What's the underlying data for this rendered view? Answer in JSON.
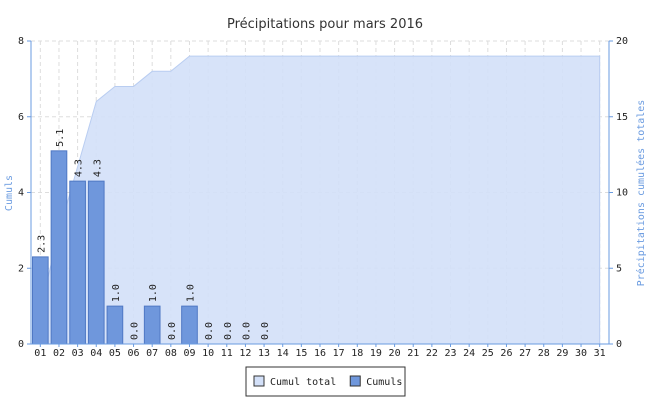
{
  "chart_data": {
    "type": "bar",
    "title": "Précipitations pour mars 2016",
    "y_label": "Cumuls",
    "y2_label": "Précipitations cumulées totales",
    "categories": [
      "01",
      "02",
      "03",
      "04",
      "05",
      "06",
      "07",
      "08",
      "09",
      "10",
      "11",
      "12",
      "13",
      "14",
      "15",
      "16",
      "17",
      "18",
      "19",
      "20",
      "21",
      "22",
      "23",
      "24",
      "25",
      "26",
      "27",
      "28",
      "29",
      "30",
      "31"
    ],
    "series": [
      {
        "name": "Cumul total",
        "type": "area",
        "axis": "y2",
        "color": "#d3e0f8",
        "values": [
          2.3,
          7.4,
          11.7,
          16.0,
          17.0,
          17.0,
          18.0,
          18.0,
          19.0,
          19.0,
          19.0,
          19.0,
          19.0,
          19.0,
          19.0,
          19.0,
          19.0,
          19.0,
          19.0,
          19.0,
          19.0,
          19.0,
          19.0,
          19.0,
          19.0,
          19.0,
          19.0,
          19.0,
          19.0,
          19.0,
          19.0
        ]
      },
      {
        "name": "Cumuls",
        "type": "bar",
        "color": "#6f97dc",
        "values": [
          2.3,
          5.1,
          4.3,
          4.3,
          1,
          0,
          1,
          0,
          1,
          0,
          0,
          0,
          0,
          null,
          null,
          null,
          null,
          null,
          null,
          null,
          null,
          null,
          null,
          null,
          null,
          null,
          null,
          null,
          null,
          null,
          null
        ],
        "value_labels": [
          "2.3",
          "5.1",
          "4.3",
          "4.3",
          "1.0",
          "0.0",
          "1.0",
          "0.0",
          "1.0",
          "0.0",
          "0.0",
          "0.0",
          "0.0",
          null,
          null,
          null,
          null,
          null,
          null,
          null,
          null,
          null,
          null,
          null,
          null,
          null,
          null,
          null,
          null,
          null,
          null
        ]
      }
    ],
    "ylim": [
      0,
      8
    ],
    "yticks": [
      0,
      2,
      4,
      6,
      8
    ],
    "y2lim": [
      0,
      20
    ],
    "y2ticks": [
      0,
      5,
      10,
      15,
      20
    ],
    "grid": true
  }
}
